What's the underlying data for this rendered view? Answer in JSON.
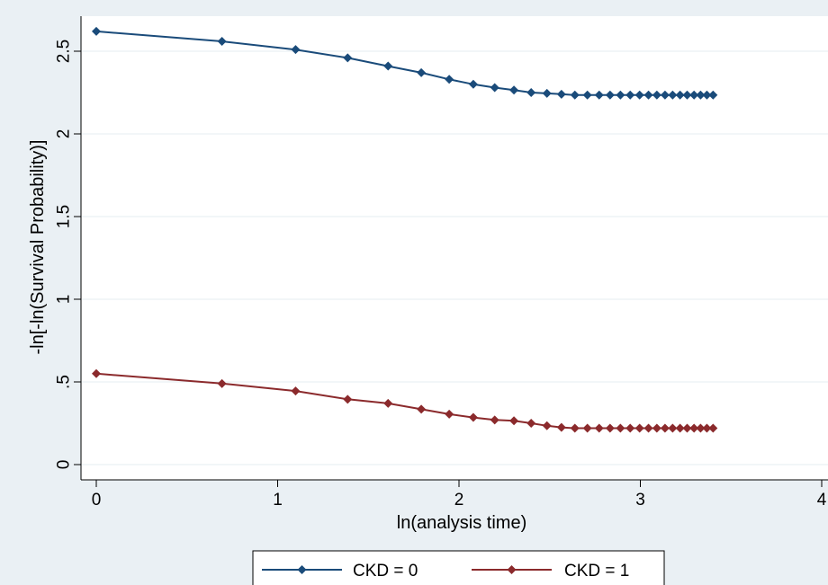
{
  "chart_data": {
    "type": "line",
    "title": "",
    "xlabel": "ln(analysis time)",
    "ylabel": "-ln[-ln(Survival Probability)]",
    "xlim": [
      0,
      4
    ],
    "ylim": [
      0,
      2.6
    ],
    "x_ticks": [
      {
        "value": 0,
        "label": "0"
      },
      {
        "value": 1,
        "label": "1"
      },
      {
        "value": 2,
        "label": "2"
      },
      {
        "value": 3,
        "label": "3"
      },
      {
        "value": 4,
        "label": "4"
      }
    ],
    "y_ticks": [
      {
        "value": 0,
        "label": "0"
      },
      {
        "value": 0.5,
        "label": ".5"
      },
      {
        "value": 1,
        "label": "1"
      },
      {
        "value": 1.5,
        "label": "1.5"
      },
      {
        "value": 2,
        "label": "2"
      },
      {
        "value": 2.5,
        "label": "2.5"
      }
    ],
    "grid": true,
    "legend_position": "bottom",
    "series": [
      {
        "name": "CKD = 0",
        "color": "#1a4b7a",
        "x": [
          0,
          0.693,
          1.099,
          1.386,
          1.609,
          1.792,
          1.946,
          2.079,
          2.197,
          2.303,
          2.398,
          2.485,
          2.565,
          2.639,
          2.708,
          2.773,
          2.833,
          2.89,
          2.944,
          2.996,
          3.045,
          3.091,
          3.136,
          3.178,
          3.219,
          3.258,
          3.296,
          3.332,
          3.367,
          3.401
        ],
        "y": [
          2.62,
          2.56,
          2.51,
          2.46,
          2.41,
          2.37,
          2.33,
          2.3,
          2.28,
          2.265,
          2.25,
          2.245,
          2.24,
          2.235,
          2.235,
          2.235,
          2.235,
          2.235,
          2.235,
          2.235,
          2.235,
          2.235,
          2.235,
          2.235,
          2.235,
          2.235,
          2.235,
          2.235,
          2.235,
          2.235
        ]
      },
      {
        "name": "CKD = 1",
        "color": "#8b2a2c",
        "x": [
          0,
          0.693,
          1.099,
          1.386,
          1.609,
          1.792,
          1.946,
          2.079,
          2.197,
          2.303,
          2.398,
          2.485,
          2.565,
          2.639,
          2.708,
          2.773,
          2.833,
          2.89,
          2.944,
          2.996,
          3.045,
          3.091,
          3.136,
          3.178,
          3.219,
          3.258,
          3.296,
          3.332,
          3.367,
          3.401
        ],
        "y": [
          0.55,
          0.49,
          0.445,
          0.395,
          0.37,
          0.335,
          0.305,
          0.285,
          0.27,
          0.265,
          0.25,
          0.235,
          0.225,
          0.22,
          0.22,
          0.22,
          0.22,
          0.22,
          0.22,
          0.22,
          0.22,
          0.22,
          0.22,
          0.22,
          0.22,
          0.22,
          0.22,
          0.22,
          0.22,
          0.22
        ]
      }
    ]
  }
}
